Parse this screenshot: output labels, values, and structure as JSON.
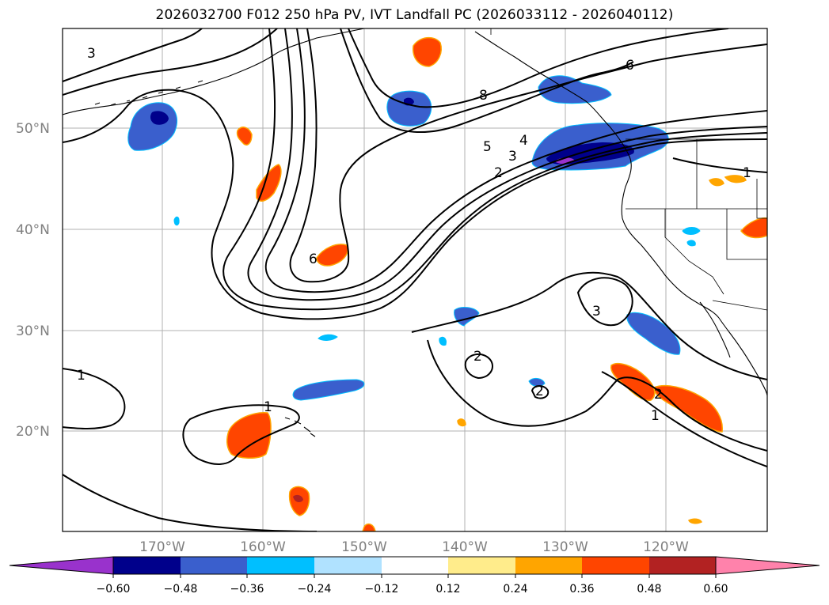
{
  "title": "2026032700 F012 250 hPa PV, IVT Landfall PC (2026033112 - 2026040112)",
  "map": {
    "lat_labels": [
      "50°N",
      "40°N",
      "30°N",
      "20°N"
    ],
    "lon_labels": [
      "170°W",
      "160°W",
      "150°W",
      "140°W",
      "130°W",
      "120°W"
    ],
    "contour_labels": [
      "3",
      "8",
      "6",
      "5",
      "4",
      "3",
      "2",
      "1",
      "6",
      "3",
      "2",
      "2",
      "1",
      "1",
      "2",
      "1"
    ]
  },
  "colorbar": {
    "tick_labels": [
      "−0.60",
      "−0.48",
      "−0.36",
      "−0.24",
      "−0.12",
      "0.12",
      "0.24",
      "0.36",
      "0.48",
      "0.60"
    ],
    "colors": [
      "#9932cc",
      "#00008b",
      "#3a5fcd",
      "#00bfff",
      "#b0e2ff",
      "#ffffff",
      "#ffec8b",
      "#ffa500",
      "#ff4500",
      "#b22222",
      "#ff82ab"
    ]
  }
}
